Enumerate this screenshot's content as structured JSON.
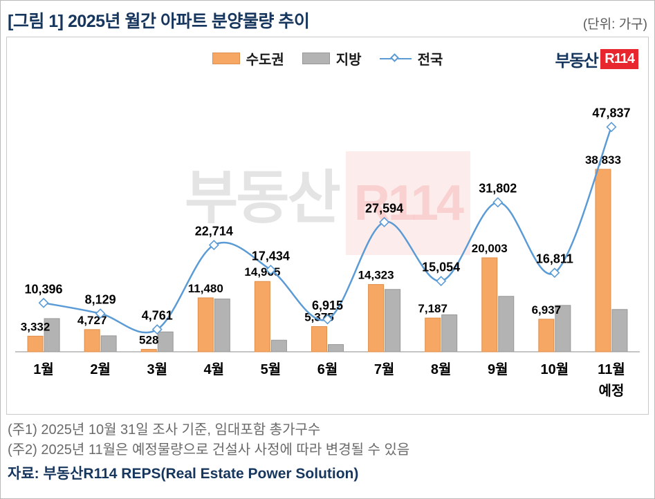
{
  "header": {
    "title": "[그림 1] 2025년 월간 아파트 분양물량 추이",
    "unit": "(단위: 가구)"
  },
  "brand": {
    "prefix": "부동산",
    "mark": "R114"
  },
  "watermark": {
    "prefix": "부동산",
    "mark": "R114"
  },
  "legend": [
    {
      "label": "수도권",
      "type": "bar",
      "color": "#F5A763",
      "border": "#df8e4b"
    },
    {
      "label": "지방",
      "type": "bar",
      "color": "#B3B3B3",
      "border": "#979797"
    },
    {
      "label": "전국",
      "type": "line",
      "color": "#5B9BD5"
    }
  ],
  "chart_data": {
    "type": "bar+line",
    "title": "[그림 1] 2025년 월간 아파트 분양물량 추이",
    "unit": "가구",
    "categories": [
      "1월",
      "2월",
      "3월",
      "4월",
      "5월",
      "6월",
      "7월",
      "8월",
      "9월",
      "10월",
      "11월"
    ],
    "category_sublabels": {
      "10": "예정"
    },
    "series": [
      {
        "name": "수도권",
        "type": "bar",
        "color": "#F5A763",
        "border": "#df8e4b",
        "labeled": true,
        "values": [
          3332,
          4727,
          528,
          11480,
          14965,
          5375,
          14323,
          7187,
          20003,
          6937,
          38833
        ]
      },
      {
        "name": "지방",
        "type": "bar",
        "color": "#B3B3B3",
        "border": "#979797",
        "labeled": false,
        "values": [
          7064,
          3402,
          4233,
          11234,
          2469,
          1540,
          13271,
          7867,
          11799,
          9874,
          9004
        ]
      },
      {
        "name": "전국",
        "type": "line",
        "color": "#5B9BD5",
        "labeled": true,
        "values": [
          10396,
          8129,
          4761,
          22714,
          17434,
          6915,
          27594,
          15054,
          31802,
          16811,
          47837
        ]
      }
    ],
    "ylim": [
      0,
      50000
    ],
    "grid": false,
    "legend_position": "top-center"
  },
  "footnotes": {
    "note1": "(주1) 2025년 10월 31일 조사 기준, 임대포함 총가구수",
    "note2": "(주2) 2025년 11월은 예정물량으로 건설사 사정에 따라 변경될 수 있음",
    "source": "자료: 부동산R114 REPS(Real Estate Power Solution)"
  }
}
